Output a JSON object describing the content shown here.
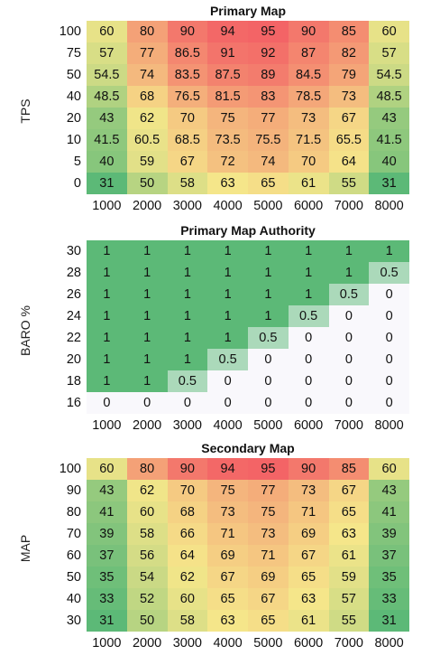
{
  "chart_data": [
    {
      "type": "heatmap",
      "title": "Primary Map",
      "ylabel": "TPS",
      "x": [
        1000,
        2000,
        3000,
        4000,
        5000,
        6000,
        7000,
        8000
      ],
      "y": [
        100,
        75,
        50,
        40,
        20,
        10,
        5,
        0
      ],
      "values": [
        [
          60,
          80,
          90,
          94,
          95,
          90,
          85,
          60
        ],
        [
          57,
          77,
          86.5,
          91,
          92,
          87,
          82,
          57
        ],
        [
          54.5,
          74,
          83.5,
          87.5,
          89,
          84.5,
          79,
          54.5
        ],
        [
          48.5,
          68,
          76.5,
          81.5,
          83,
          78.5,
          73,
          48.5
        ],
        [
          43,
          62,
          70,
          75,
          77,
          73,
          67,
          43
        ],
        [
          41.5,
          60.5,
          68.5,
          73.5,
          75.5,
          71.5,
          65.5,
          41.5
        ],
        [
          40,
          59,
          67,
          72,
          74,
          70,
          64,
          40
        ],
        [
          31,
          50,
          58,
          63,
          65,
          61,
          55,
          31
        ]
      ],
      "colorscale": "green-yellow-red",
      "vrange": [
        31,
        95
      ]
    },
    {
      "type": "heatmap",
      "title": "Primary Map Authority",
      "ylabel": "BARO %",
      "x": [
        1000,
        2000,
        3000,
        4000,
        5000,
        6000,
        7000,
        8000
      ],
      "y": [
        30,
        28,
        26,
        24,
        22,
        20,
        18,
        16
      ],
      "values": [
        [
          1,
          1,
          1,
          1,
          1,
          1,
          1,
          1
        ],
        [
          1,
          1,
          1,
          1,
          1,
          1,
          1,
          0.5
        ],
        [
          1,
          1,
          1,
          1,
          1,
          1,
          0.5,
          0
        ],
        [
          1,
          1,
          1,
          1,
          1,
          0.5,
          0,
          0
        ],
        [
          1,
          1,
          1,
          1,
          0.5,
          0,
          0,
          0
        ],
        [
          1,
          1,
          1,
          0.5,
          0,
          0,
          0,
          0
        ],
        [
          1,
          1,
          0.5,
          0,
          0,
          0,
          0,
          0
        ],
        [
          0,
          0,
          0,
          0,
          0,
          0,
          0,
          0
        ]
      ],
      "colorscale": "white-green",
      "vrange": [
        0,
        1
      ]
    },
    {
      "type": "heatmap",
      "title": "Secondary Map",
      "ylabel": "MAP",
      "x": [
        1000,
        2000,
        3000,
        4000,
        5000,
        6000,
        7000,
        8000
      ],
      "y": [
        100,
        90,
        80,
        70,
        60,
        50,
        40,
        30
      ],
      "values": [
        [
          60,
          80,
          90,
          94,
          95,
          90,
          85,
          60
        ],
        [
          43,
          62,
          70,
          75,
          77,
          73,
          67,
          43
        ],
        [
          41,
          60,
          68,
          73,
          75,
          71,
          65,
          41
        ],
        [
          39,
          58,
          66,
          71,
          73,
          69,
          63,
          39
        ],
        [
          37,
          56,
          64,
          69,
          71,
          67,
          61,
          37
        ],
        [
          35,
          54,
          62,
          67,
          69,
          65,
          59,
          35
        ],
        [
          33,
          52,
          60,
          65,
          67,
          63,
          57,
          33
        ],
        [
          31,
          50,
          58,
          63,
          65,
          61,
          55,
          31
        ]
      ],
      "colorscale": "green-yellow-red",
      "vrange": [
        31,
        95
      ]
    }
  ],
  "colors": {
    "low": "#5cb977",
    "mid": "#f5e68a",
    "high": "#f36466",
    "zero": "#f9f8fc"
  }
}
